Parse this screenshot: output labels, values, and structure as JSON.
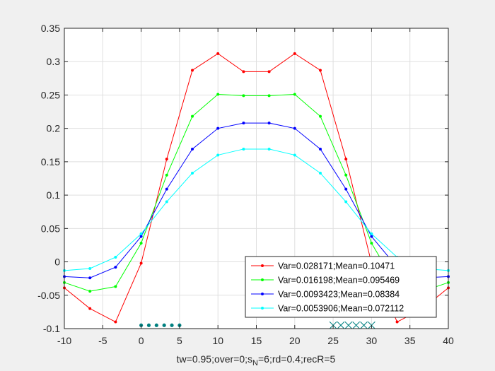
{
  "chart_data": {
    "type": "line",
    "xlim": [
      -10,
      40
    ],
    "ylim": [
      -0.1,
      0.35
    ],
    "xticks": [
      -10,
      -5,
      0,
      5,
      10,
      15,
      20,
      25,
      30,
      35,
      40
    ],
    "xtick_labels": [
      "-10",
      "-5",
      "0",
      "5",
      "10",
      "15",
      "20",
      "25",
      "30",
      "35",
      "40"
    ],
    "yticks": [
      -0.1,
      -0.05,
      0,
      0.05,
      0.1,
      0.15,
      0.2,
      0.25,
      0.3,
      0.35
    ],
    "ytick_labels": [
      "-0.1",
      "-0.05",
      "0",
      "0.05",
      "0.1",
      "0.15",
      "0.2",
      "0.25",
      "0.3",
      "0.35"
    ],
    "grid": true,
    "legend_position": "bottom-right",
    "xlabel_parts": [
      "tw=0.95;over=0;s",
      "N",
      "=6;rd=0.4;recR=5"
    ],
    "x": [
      -10,
      -6.667,
      -3.333,
      0,
      3.333,
      6.667,
      10,
      13.333,
      16.667,
      20,
      23.333,
      26.667,
      30,
      33.333,
      36.667,
      40
    ],
    "series": [
      {
        "name": "Var=0.028171;Mean=0.10471",
        "color": "#ff0000",
        "values": [
          -0.039,
          -0.07,
          -0.09,
          -0.002,
          0.154,
          0.287,
          0.312,
          0.285,
          0.285,
          0.312,
          0.287,
          0.154,
          -0.002,
          -0.09,
          -0.07,
          -0.039
        ]
      },
      {
        "name": "Var=0.016198;Mean=0.095469",
        "color": "#00ff00",
        "values": [
          -0.031,
          -0.044,
          -0.037,
          0.028,
          0.13,
          0.218,
          0.251,
          0.249,
          0.249,
          0.251,
          0.218,
          0.13,
          0.028,
          -0.037,
          -0.044,
          -0.031
        ]
      },
      {
        "name": "Var=0.0093423;Mean=0.08384",
        "color": "#0000ff",
        "values": [
          -0.022,
          -0.024,
          -0.008,
          0.038,
          0.109,
          0.169,
          0.2,
          0.208,
          0.208,
          0.2,
          0.169,
          0.109,
          0.038,
          -0.008,
          -0.024,
          -0.022
        ]
      },
      {
        "name": "Var=0.0053906;Mean=0.072112",
        "color": "#00ffff",
        "values": [
          -0.013,
          -0.01,
          0.007,
          0.042,
          0.09,
          0.133,
          0.16,
          0.169,
          0.169,
          0.16,
          0.133,
          0.09,
          0.042,
          0.007,
          -0.01,
          -0.013
        ]
      }
    ],
    "markers": {
      "dots": {
        "color": "#008080",
        "x": [
          0,
          1,
          2,
          3,
          4,
          5
        ],
        "y": -0.095
      },
      "crosses": {
        "color": "#008080",
        "x": [
          25,
          26,
          27,
          28,
          29,
          30
        ],
        "y": -0.095
      }
    }
  }
}
